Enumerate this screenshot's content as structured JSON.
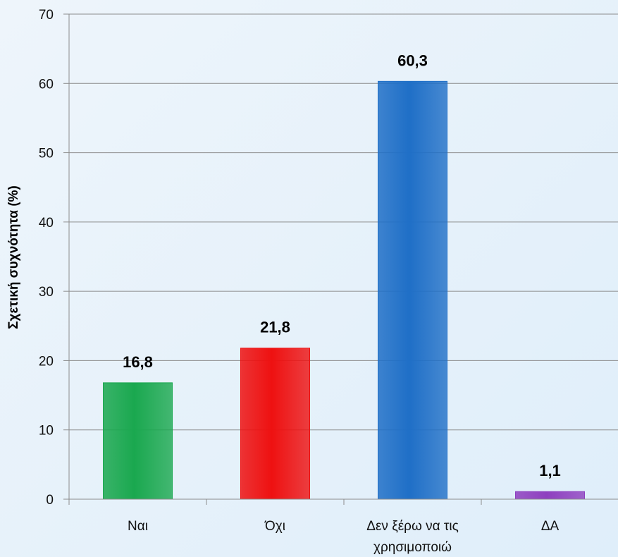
{
  "chart_data": {
    "type": "bar",
    "title": "",
    "xlabel": "",
    "ylabel": "Σχετική συχνότητα (%)",
    "ylim": [
      0,
      70
    ],
    "yticks": [
      0,
      10,
      20,
      30,
      40,
      50,
      60,
      70
    ],
    "grid": true,
    "legend": "none",
    "categories": [
      "Ναι",
      "Όχι",
      "Δεν ξέρω να τις χρησιμοποιώ",
      "ΔΑ"
    ],
    "category_lines": [
      [
        "Ναι"
      ],
      [
        "Όχι"
      ],
      [
        "Δεν ξέρω να τις",
        "χρησιμοποιώ"
      ],
      [
        "ΔΑ"
      ]
    ],
    "values": [
      16.8,
      21.8,
      60.3,
      1.1
    ],
    "value_labels": [
      "16,8",
      "21,8",
      "60,3",
      "1,1"
    ],
    "colors": [
      "#1aa84f",
      "#ee1111",
      "#1f6fc7",
      "#8e3fbf"
    ]
  }
}
